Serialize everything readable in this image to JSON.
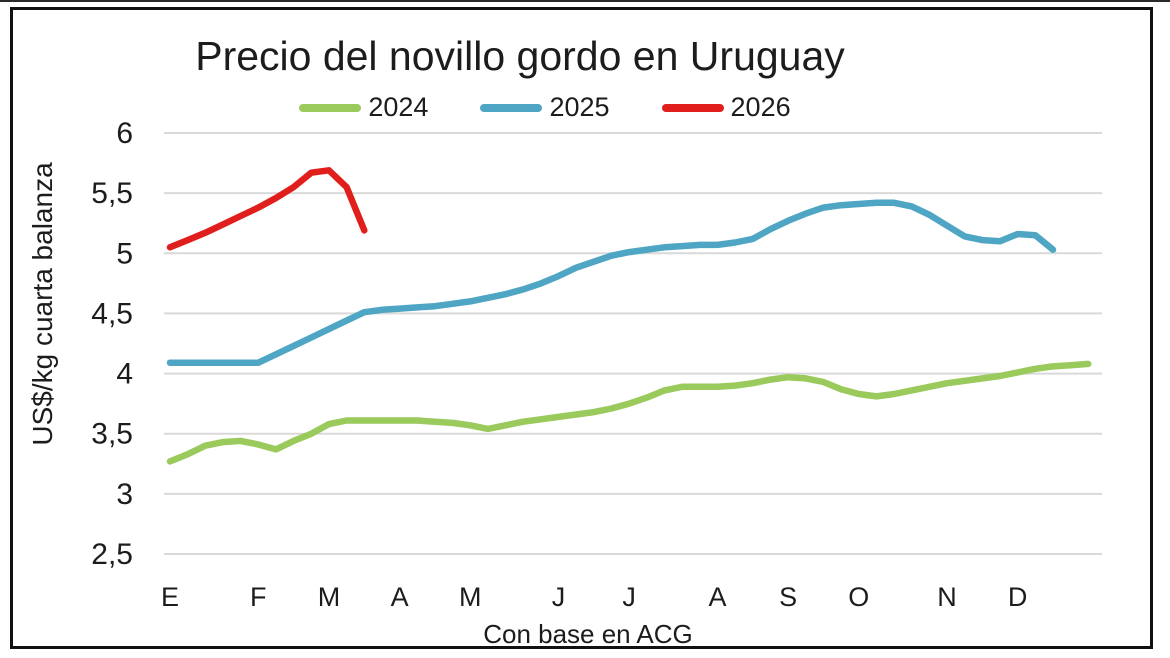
{
  "chart_data": {
    "type": "line",
    "title": "Precio del novillo gordo en Uruguay",
    "xlabel": "Con base en ACG",
    "ylabel": "US$/kg cuarta balanza",
    "ylim": [
      2.5,
      6
    ],
    "grid": "horizontal-only",
    "grid_color": "#d9d9d9",
    "legend_position": "top-center",
    "y_ticks": [
      {
        "value": 6.0,
        "label": "6"
      },
      {
        "value": 5.5,
        "label": "5,5"
      },
      {
        "value": 5.0,
        "label": "5"
      },
      {
        "value": 4.5,
        "label": "4,5"
      },
      {
        "value": 4.0,
        "label": "4"
      },
      {
        "value": 3.5,
        "label": "3,5"
      },
      {
        "value": 3.0,
        "label": "3"
      },
      {
        "value": 2.5,
        "label": "2,5"
      }
    ],
    "x_axis": {
      "unit": "week-of-year",
      "month_labels": [
        "E",
        "F",
        "M",
        "A",
        "M",
        "J",
        "J",
        "A",
        "S",
        "O",
        "N",
        "D"
      ],
      "month_label_week_index": [
        0,
        5,
        9,
        13,
        17,
        22,
        26,
        31,
        35,
        39,
        44,
        48
      ],
      "weeks_total": 53
    },
    "series": [
      {
        "name": "2024",
        "color": "#9ac95c",
        "start_week": 0,
        "values": [
          3.27,
          3.33,
          3.4,
          3.43,
          3.44,
          3.41,
          3.37,
          3.44,
          3.5,
          3.58,
          3.61,
          3.61,
          3.61,
          3.61,
          3.61,
          3.6,
          3.59,
          3.57,
          3.54,
          3.57,
          3.6,
          3.62,
          3.64,
          3.66,
          3.68,
          3.71,
          3.75,
          3.8,
          3.86,
          3.89,
          3.89,
          3.89,
          3.9,
          3.92,
          3.95,
          3.97,
          3.96,
          3.93,
          3.87,
          3.83,
          3.81,
          3.83,
          3.86,
          3.89,
          3.92,
          3.94,
          3.96,
          3.98,
          4.01,
          4.04,
          4.06,
          4.07,
          4.08
        ]
      },
      {
        "name": "2025",
        "color": "#4fa5c4",
        "start_week": 0,
        "values": [
          4.09,
          4.09,
          4.09,
          4.09,
          4.09,
          4.09,
          4.16,
          4.23,
          4.3,
          4.37,
          4.44,
          4.51,
          4.53,
          4.54,
          4.55,
          4.56,
          4.58,
          4.6,
          4.63,
          4.66,
          4.7,
          4.75,
          4.81,
          4.88,
          4.93,
          4.98,
          5.01,
          5.03,
          5.05,
          5.06,
          5.07,
          5.07,
          5.09,
          5.12,
          5.2,
          5.27,
          5.33,
          5.38,
          5.4,
          5.41,
          5.42,
          5.42,
          5.39,
          5.32,
          5.23,
          5.14,
          5.11,
          5.1,
          5.16,
          5.15,
          5.03
        ]
      },
      {
        "name": "2026",
        "color": "#e01f1d",
        "start_week": 0,
        "values": [
          5.05,
          5.11,
          5.17,
          5.24,
          5.31,
          5.38,
          5.46,
          5.55,
          5.67,
          5.69,
          5.55,
          5.19
        ]
      }
    ]
  }
}
